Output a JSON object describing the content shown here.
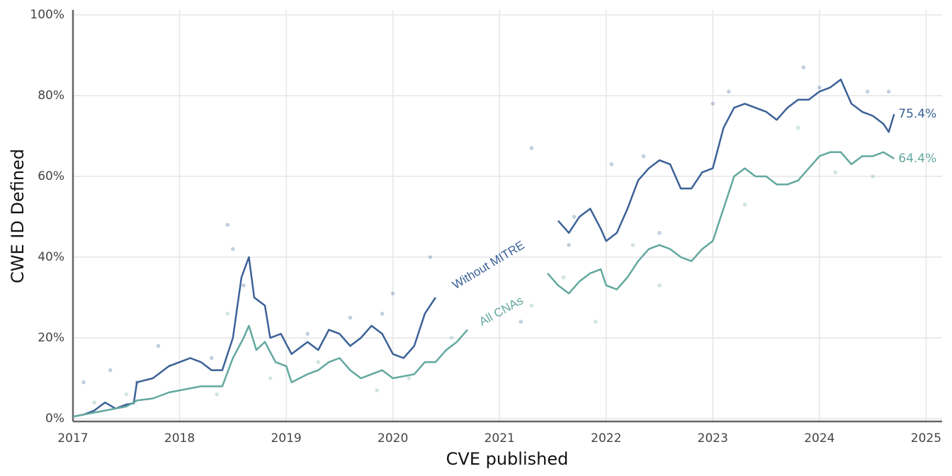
{
  "chart_data": {
    "type": "line",
    "x_label": "CVE published",
    "y_label": "CWE ID Defined",
    "xlim": [
      2017,
      2025.15
    ],
    "xticks": [
      2017,
      2018,
      2019,
      2020,
      2021,
      2022,
      2023,
      2024,
      2025
    ],
    "ylim": [
      -0.7,
      100
    ],
    "yticks": [
      {
        "value": 0,
        "label": "0%"
      },
      {
        "value": 20,
        "label": "20%"
      },
      {
        "value": 40,
        "label": "40%"
      },
      {
        "value": 60,
        "label": "60%"
      },
      {
        "value": 80,
        "label": "80%"
      },
      {
        "value": 100,
        "label": "100%"
      }
    ],
    "grid": true,
    "series": [
      {
        "name": "Without MITRE",
        "color": "#3b6196",
        "x": [
          2017.0,
          2017.1,
          2017.2,
          2017.3,
          2017.4,
          2017.5,
          2017.57,
          2017.6,
          2017.75,
          2017.9,
          2018.0,
          2018.1,
          2018.2,
          2018.3,
          2018.4,
          2018.5,
          2018.58,
          2018.65,
          2018.7,
          2018.8,
          2018.85,
          2018.95,
          2019.05,
          2019.2,
          2019.3,
          2019.4,
          2019.5,
          2019.6,
          2019.7,
          2019.8,
          2019.9,
          2020.0,
          2020.1,
          2020.2,
          2020.3,
          2020.4,
          2020.5,
          2021.55,
          2021.65,
          2021.75,
          2021.85,
          2021.95,
          2022.0,
          2022.1,
          2022.2,
          2022.3,
          2022.4,
          2022.5,
          2022.6,
          2022.7,
          2022.8,
          2022.9,
          2023.0,
          2023.1,
          2023.2,
          2023.3,
          2023.4,
          2023.5,
          2023.6,
          2023.7,
          2023.8,
          2023.9,
          2024.0,
          2024.1,
          2024.2,
          2024.3,
          2024.4,
          2024.5,
          2024.6,
          2024.65,
          2024.7
        ],
        "values": [
          0.5,
          1,
          2,
          4,
          2.5,
          3.5,
          3.8,
          9,
          10,
          13,
          14,
          15,
          14,
          12,
          12,
          20,
          35,
          40,
          30,
          28,
          20,
          21,
          16,
          19,
          17,
          22,
          21,
          18,
          20,
          23,
          21,
          16,
          15,
          18,
          26,
          30,
          null,
          49,
          46,
          50,
          52,
          47,
          44,
          46,
          52,
          59,
          62,
          64,
          63,
          57,
          57,
          61,
          62,
          72,
          77,
          78,
          77,
          76,
          74,
          77,
          79,
          79,
          81,
          82,
          84,
          78,
          76,
          75,
          73,
          71,
          75.4
        ],
        "value_labels": [
          null,
          null,
          null,
          null,
          null,
          null,
          null,
          null,
          null,
          null,
          null,
          null,
          null,
          null,
          null,
          null,
          null,
          null,
          null,
          null,
          null,
          null,
          null,
          null,
          null,
          null,
          null,
          null,
          null,
          null,
          null,
          null,
          null,
          null,
          null,
          null,
          null,
          null,
          null,
          null,
          null,
          null,
          null,
          null,
          null,
          null,
          null,
          null,
          null,
          null,
          null,
          null,
          null,
          null,
          null,
          null,
          null,
          null,
          null,
          null,
          null,
          null,
          null,
          null,
          null,
          null,
          null,
          null,
          null,
          null,
          "75.4%"
        ],
        "points_x": [
          2017.1,
          2017.35,
          2017.6,
          2017.8,
          2018.3,
          2018.45,
          2018.5,
          2018.6,
          2019.2,
          2019.6,
          2019.9,
          2020.0,
          2020.35,
          2021.2,
          2021.3,
          2021.65,
          2021.7,
          2022.05,
          2022.35,
          2022.5,
          2023.0,
          2023.15,
          2023.85,
          2024.0,
          2024.45,
          2024.65
        ],
        "points_y": [
          9,
          12,
          9,
          18,
          15,
          48,
          42,
          33,
          21,
          25,
          26,
          31,
          40,
          24,
          67,
          43,
          50,
          63,
          65,
          46,
          78,
          81,
          87,
          82,
          81,
          81
        ]
      },
      {
        "name": "All CNAs",
        "color": "#62a89f",
        "x": [
          2017.0,
          2017.3,
          2017.5,
          2017.6,
          2017.75,
          2017.9,
          2018.0,
          2018.2,
          2018.4,
          2018.5,
          2018.6,
          2018.65,
          2018.72,
          2018.8,
          2018.9,
          2019.0,
          2019.05,
          2019.2,
          2019.3,
          2019.4,
          2019.5,
          2019.6,
          2019.7,
          2019.8,
          2019.9,
          2020.0,
          2020.2,
          2020.3,
          2020.4,
          2020.5,
          2020.6,
          2020.7,
          2020.8,
          2021.45,
          2021.55,
          2021.65,
          2021.75,
          2021.85,
          2021.95,
          2022.0,
          2022.1,
          2022.2,
          2022.3,
          2022.4,
          2022.5,
          2022.6,
          2022.7,
          2022.8,
          2022.9,
          2023.0,
          2023.1,
          2023.2,
          2023.3,
          2023.4,
          2023.5,
          2023.6,
          2023.7,
          2023.8,
          2023.9,
          2024.0,
          2024.1,
          2024.2,
          2024.3,
          2024.4,
          2024.5,
          2024.6,
          2024.7
        ],
        "values": [
          0.5,
          2,
          3,
          4.5,
          5,
          6.5,
          7,
          8,
          8,
          15,
          20,
          23,
          17,
          19,
          14,
          13,
          9,
          11,
          12,
          14,
          15,
          12,
          10,
          11,
          12,
          10,
          11,
          14,
          14,
          17,
          19,
          22,
          null,
          36,
          33,
          31,
          34,
          36,
          37,
          33,
          32,
          35,
          39,
          42,
          43,
          42,
          40,
          39,
          42,
          44,
          52,
          60,
          62,
          60,
          60,
          58,
          58,
          59,
          62,
          65,
          66,
          66,
          63,
          65,
          65,
          66,
          64.4
        ],
        "value_labels": [
          null,
          null,
          null,
          null,
          null,
          null,
          null,
          null,
          null,
          null,
          null,
          null,
          null,
          null,
          null,
          null,
          null,
          null,
          null,
          null,
          null,
          null,
          null,
          null,
          null,
          null,
          null,
          null,
          null,
          null,
          null,
          null,
          null,
          null,
          null,
          null,
          null,
          null,
          null,
          null,
          null,
          null,
          null,
          null,
          null,
          null,
          null,
          null,
          null,
          null,
          null,
          null,
          null,
          null,
          null,
          null,
          null,
          null,
          null,
          null,
          null,
          null,
          null,
          null,
          null,
          null,
          "64.4%"
        ],
        "points_x": [
          2017.2,
          2017.5,
          2018.35,
          2018.45,
          2018.85,
          2019.3,
          2019.85,
          2020.15,
          2020.55,
          2021.3,
          2021.6,
          2021.9,
          2022.25,
          2022.5,
          2023.3,
          2023.8,
          2024.15,
          2024.5
        ],
        "points_y": [
          4,
          6,
          6,
          26,
          10,
          14,
          7,
          10,
          20,
          28,
          35,
          24,
          43,
          33,
          53,
          72,
          61,
          60
        ]
      }
    ]
  }
}
